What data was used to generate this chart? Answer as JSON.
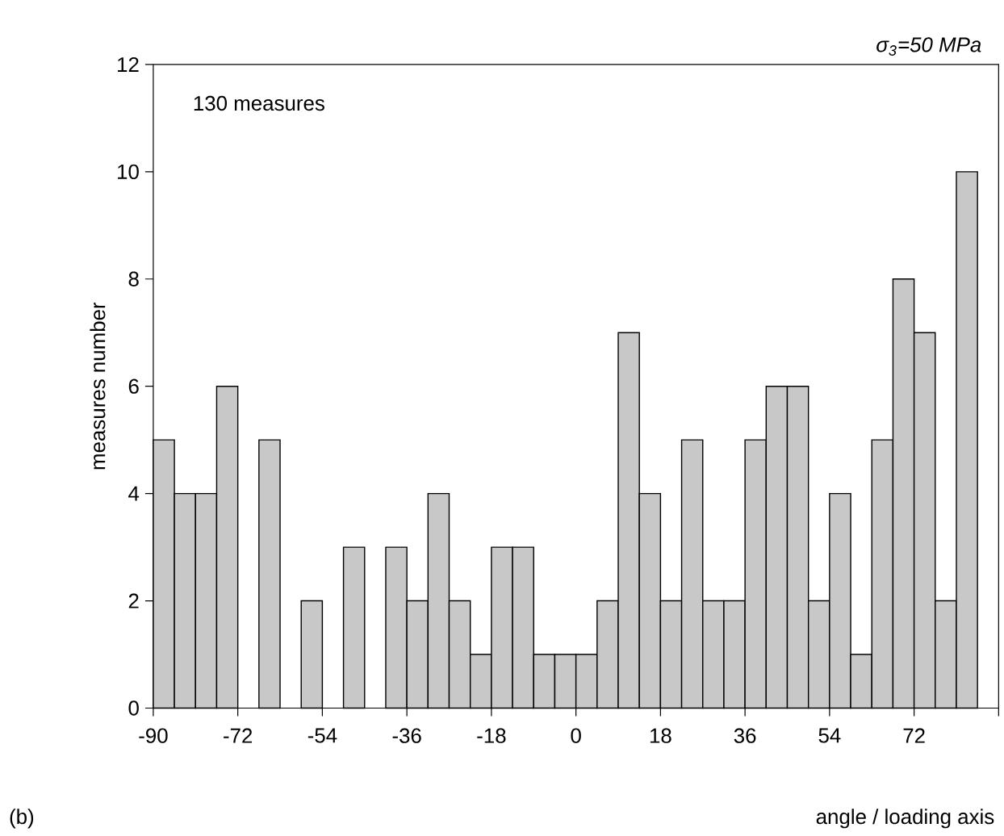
{
  "chart_data": {
    "type": "histogram",
    "title": "σ$_{3}$=50 MPa",
    "xlabel": "angle / loading axis",
    "ylabel": "measures number",
    "annotations": [
      "130 measures",
      "(b)"
    ],
    "bins": [
      -90,
      -85.5,
      -81,
      -76.5,
      -72,
      -67.5,
      -63,
      -58.5,
      -54,
      -49.5,
      -45,
      -40.5,
      -36,
      -31.5,
      -27,
      -22.5,
      -18,
      -13.5,
      -9,
      -4.5,
      0,
      4.5,
      9,
      13.5,
      18,
      22.5,
      27,
      31.5,
      36,
      40.5,
      45,
      49.5,
      54,
      58.5,
      63,
      67.5,
      72,
      76.5,
      81,
      85.5
    ],
    "values": [
      5,
      4,
      4,
      6,
      0,
      5,
      0,
      2,
      0,
      3,
      0,
      3,
      2,
      4,
      2,
      1,
      3,
      3,
      1,
      1,
      1,
      2,
      7,
      4,
      2,
      5,
      2,
      2,
      5,
      6,
      6,
      2,
      4,
      1,
      5,
      8,
      7,
      2,
      10
    ],
    "color": "#c8c8c8",
    "xlim": [
      -90,
      90
    ],
    "ylim": [
      0,
      12
    ],
    "xticks": [
      -90,
      -72,
      -54,
      -36,
      -18,
      0,
      18,
      36,
      54,
      72,
      {
        "value": 90,
        "label": null
      }
    ],
    "yticks": [
      0,
      2,
      4,
      6,
      8,
      10,
      12
    ],
    "grid": false
  }
}
